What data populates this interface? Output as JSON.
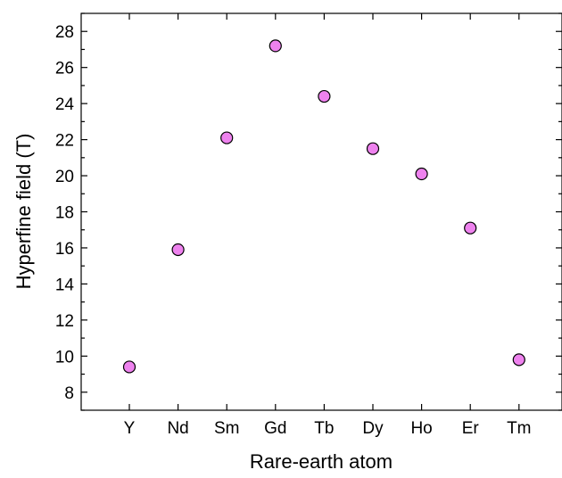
{
  "chart_data": {
    "type": "scatter",
    "title": "",
    "xlabel": "Rare-earth atom",
    "ylabel": "Hyperfine field (T)",
    "categories": [
      "Y",
      "Nd",
      "Sm",
      "Gd",
      "Tb",
      "Dy",
      "Ho",
      "Er",
      "Tm"
    ],
    "values": [
      9.4,
      15.9,
      22.1,
      27.2,
      24.4,
      21.5,
      20.1,
      17.1,
      9.8
    ],
    "ylim": [
      7,
      29
    ],
    "yticks": [
      8,
      10,
      12,
      14,
      16,
      18,
      20,
      22,
      24,
      26,
      28
    ],
    "grid": false,
    "legend": "none",
    "colors": {
      "marker_fill": "#ee82ee",
      "marker_stroke": "#000000"
    }
  }
}
